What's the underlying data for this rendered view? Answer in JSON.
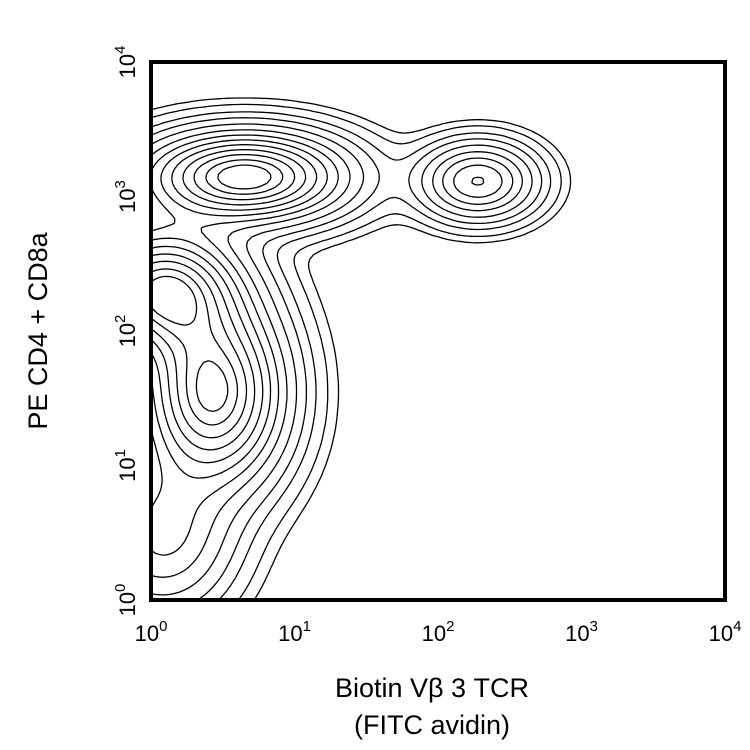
{
  "chart_data": {
    "type": "contour",
    "xlabel_line1": "Biotin Vβ 3 TCR",
    "xlabel_line2": "(FITC avidin)",
    "ylabel": "PE CD4 + CD8a",
    "x_scale": "log",
    "y_scale": "log",
    "xlim": [
      1,
      10000
    ],
    "ylim": [
      1,
      10000
    ],
    "x_ticks": [
      {
        "base": "10",
        "exp": "0",
        "value": 1
      },
      {
        "base": "10",
        "exp": "1",
        "value": 10
      },
      {
        "base": "10",
        "exp": "2",
        "value": 100
      },
      {
        "base": "10",
        "exp": "3",
        "value": 1000
      },
      {
        "base": "10",
        "exp": "4",
        "value": 10000
      }
    ],
    "y_ticks": [
      {
        "base": "10",
        "exp": "0",
        "value": 1
      },
      {
        "base": "10",
        "exp": "1",
        "value": 10
      },
      {
        "base": "10",
        "exp": "2",
        "value": 100
      },
      {
        "base": "10",
        "exp": "3",
        "value": 1000
      },
      {
        "base": "10",
        "exp": "4",
        "value": 10000
      }
    ],
    "grid": false,
    "legend": "none",
    "populations": [
      {
        "x": 1.2,
        "y": 200,
        "spread_x": 0.32,
        "spread_y": 0.28,
        "weight": 1.0
      },
      {
        "x": 4.5,
        "y": 1400,
        "spread_x": 0.42,
        "spread_y": 0.2,
        "weight": 1.1
      },
      {
        "x": 2.7,
        "y": 35,
        "spread_x": 0.3,
        "spread_y": 0.42,
        "weight": 1.05
      },
      {
        "x": 190,
        "y": 1300,
        "spread_x": 0.24,
        "spread_y": 0.17,
        "weight": 0.55
      },
      {
        "x": 1.2,
        "y": 3,
        "spread_x": 0.3,
        "spread_y": 0.35,
        "weight": 0.35
      }
    ],
    "contour_levels": [
      0.015,
      0.03,
      0.06,
      0.1,
      0.16,
      0.24,
      0.33,
      0.43,
      0.54,
      0.66,
      0.78,
      0.9,
      1.0
    ],
    "line_color": "#000000"
  }
}
